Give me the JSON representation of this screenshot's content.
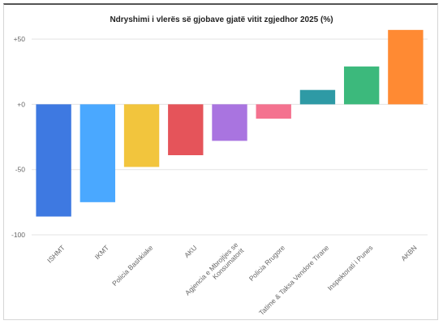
{
  "chart_data": {
    "type": "bar",
    "title": "Ndryshimi i vlerës së gjobave gjatë vitit zgjedhor 2025 (%)",
    "xlabel": "",
    "ylabel": "",
    "ylim": [
      -100,
      60
    ],
    "yticks": [
      50,
      0,
      -50,
      -100
    ],
    "ytick_labels": [
      "+50",
      "+0",
      "-50",
      "-100"
    ],
    "grid": true,
    "categories": [
      [
        "ISHMT"
      ],
      [
        "IKMT"
      ],
      [
        "Policia Bashkiake"
      ],
      [
        "AKU"
      ],
      [
        "Agjencia e Mbrojtjes se",
        "Konsumatorit"
      ],
      [
        "Policia Rrugore"
      ],
      [
        "Tatime & Taksa Vendore Tirane"
      ],
      [
        "Inspektorati i Punes"
      ],
      [
        "AKBN"
      ]
    ],
    "values": [
      -86,
      -75,
      -48,
      -39,
      -28,
      -11,
      11,
      29,
      57
    ],
    "colors": [
      "#3e79e1",
      "#4aa8ff",
      "#f2c53d",
      "#e5545a",
      "#a974e0",
      "#f4728f",
      "#2e9aa5",
      "#3cb97c",
      "#ff8a33"
    ]
  }
}
